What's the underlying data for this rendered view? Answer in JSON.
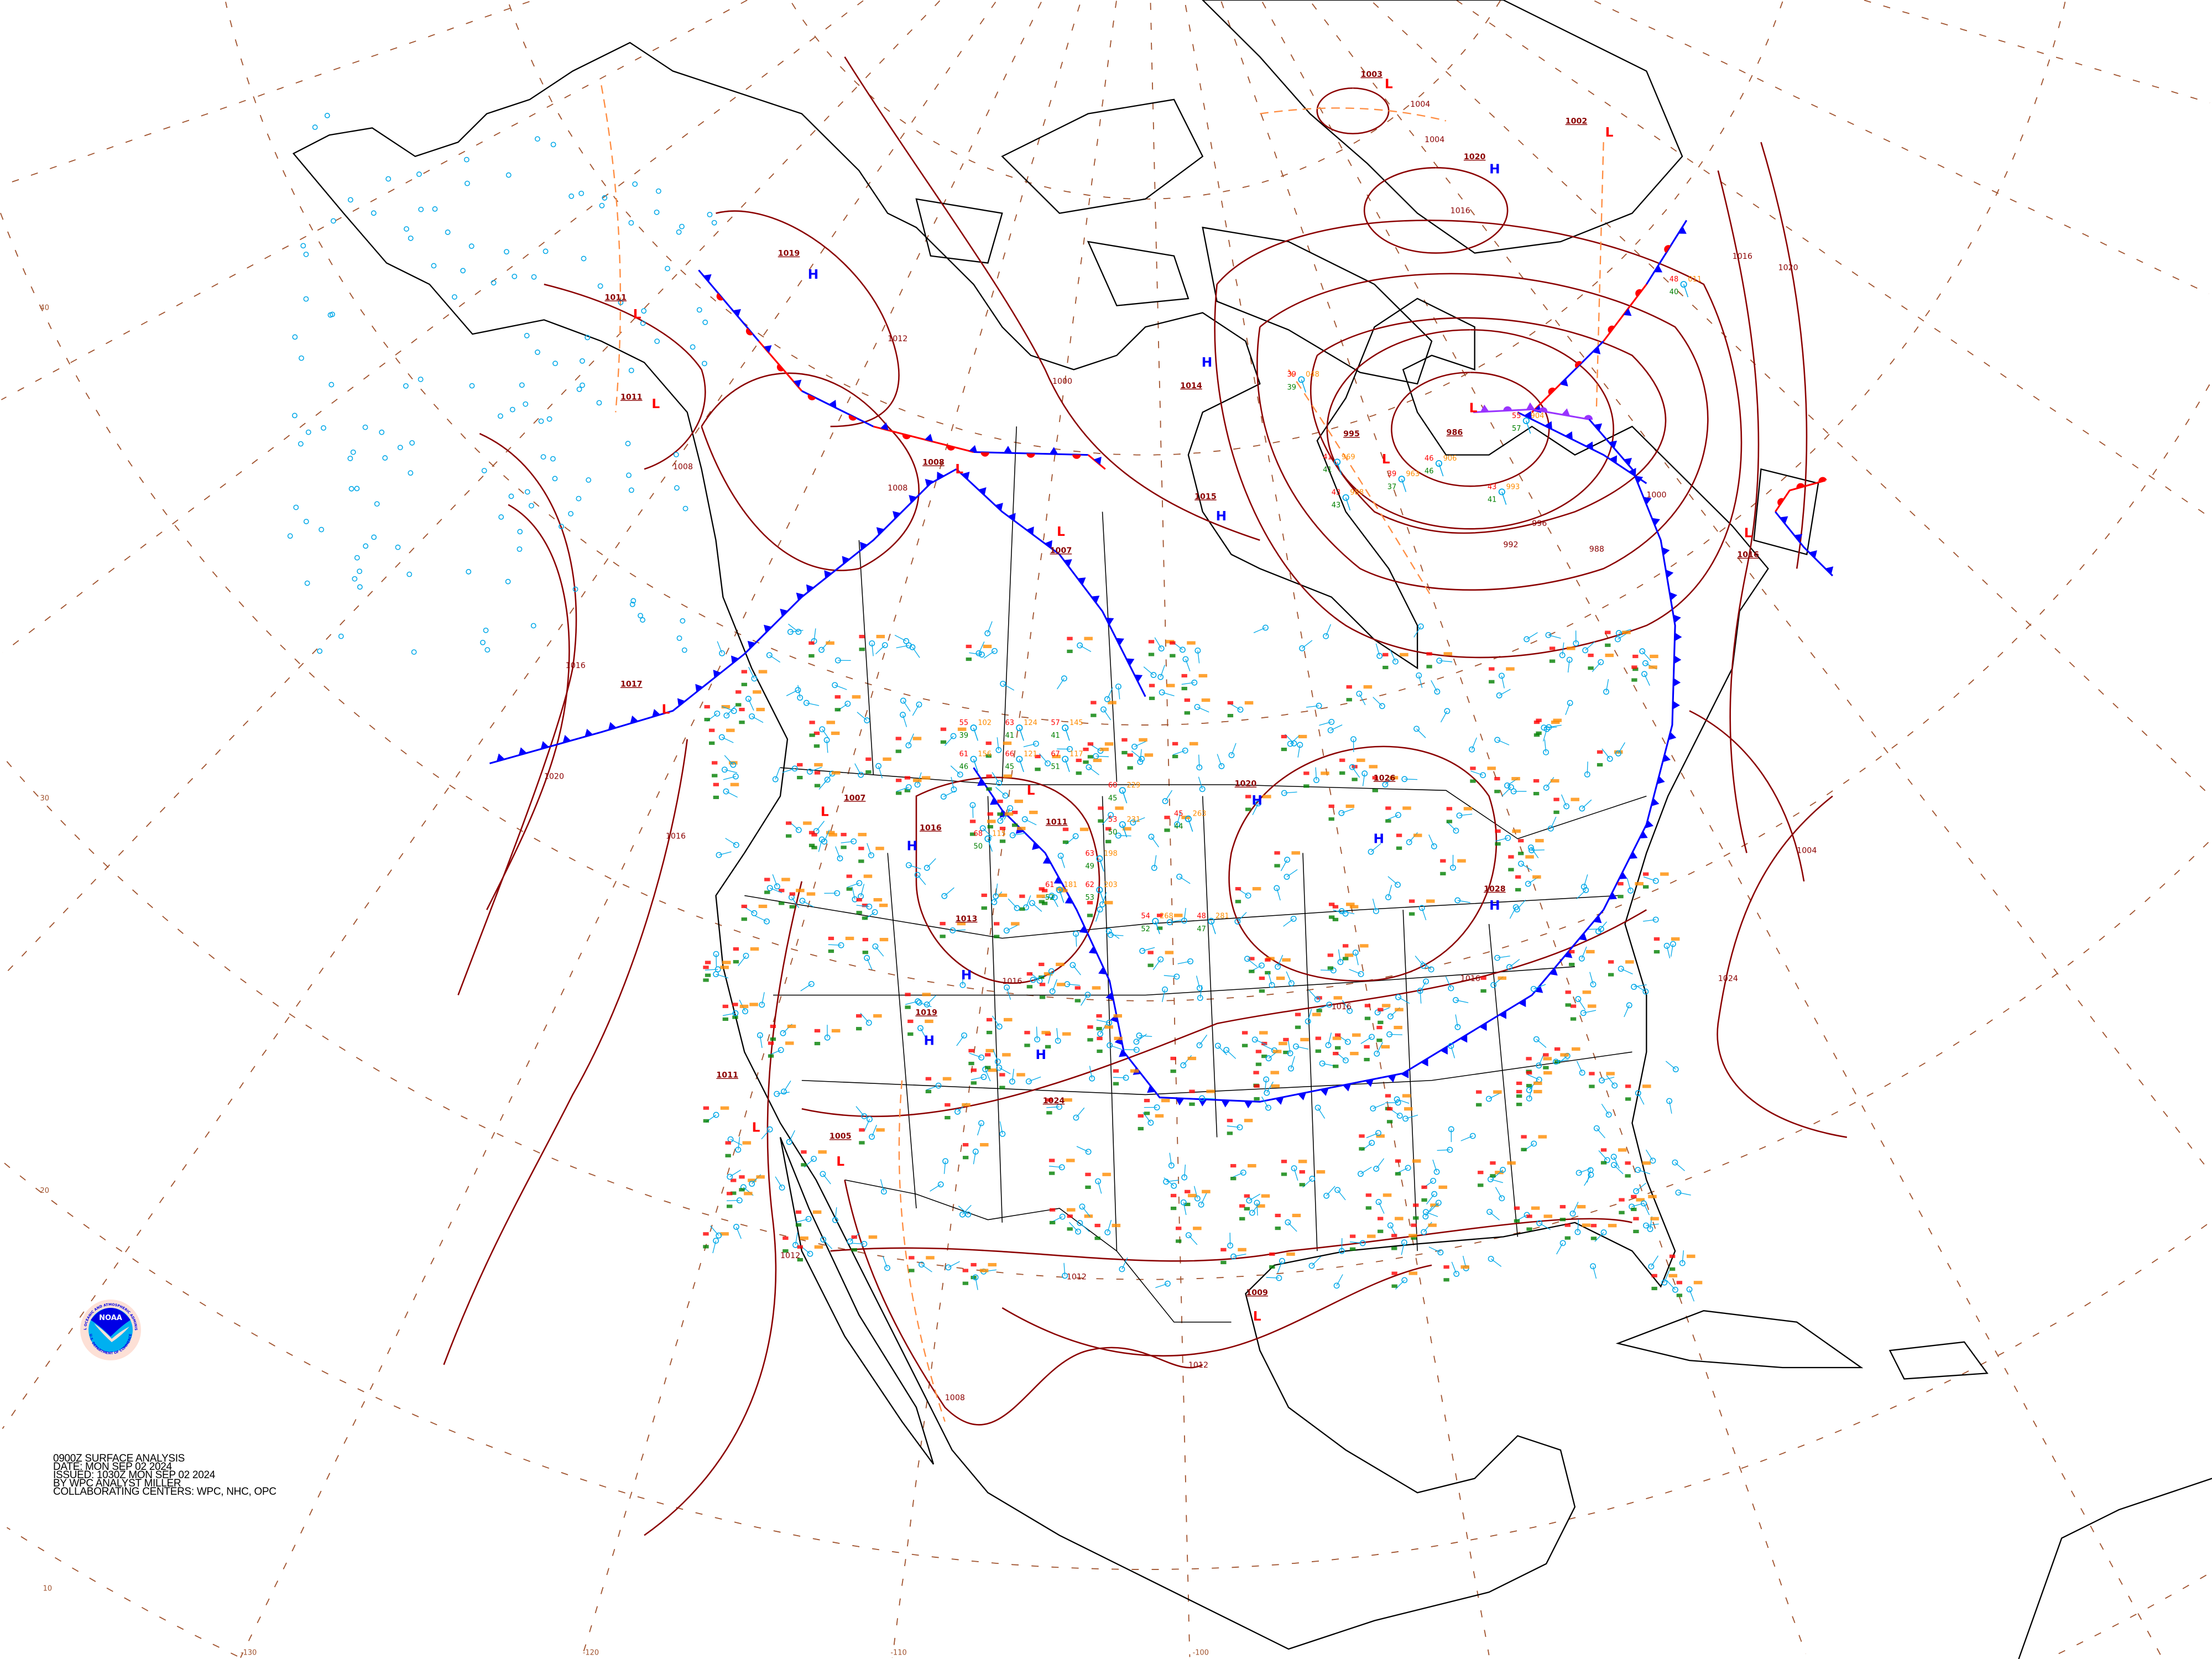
{
  "title_block": {
    "line1": "0900Z SURFACE ANALYSIS",
    "line2": "DATE: MON SEP 02 2024",
    "line3": "ISSUED: 1030Z MON SEP 02 2024",
    "line4": "BY WPC ANALYST MILLER",
    "line5": "COLLABORATING CENTERS: WPC, NHC, OPC"
  },
  "logo": {
    "wordmark": "NOAA",
    "ring_top": "NATIONAL OCEANIC AND ATMOSPHERIC ADMINISTRATION",
    "ring_bottom": "U.S. DEPARTMENT OF COMMERCE"
  },
  "grid_labels": {
    "latitude": [
      "40",
      "30",
      "20",
      "10"
    ],
    "longitude": [
      "-130",
      "-120",
      "-110",
      "-100"
    ]
  },
  "pressure_centers": [
    {
      "type": "L",
      "value": "1003"
    },
    {
      "type": "L",
      "value": "1002"
    },
    {
      "type": "H",
      "value": "1020"
    },
    {
      "type": "L",
      "value": "986"
    },
    {
      "type": "L",
      "value": "995"
    },
    {
      "type": "H",
      "value": "1014"
    },
    {
      "type": "H",
      "value": "1015"
    },
    {
      "type": "H",
      "value": "1019"
    },
    {
      "type": "L",
      "value": "1011"
    },
    {
      "type": "L",
      "value": "1011"
    },
    {
      "type": "L",
      "value": "1008"
    },
    {
      "type": "L",
      "value": "1007"
    },
    {
      "type": "L",
      "value": "1017"
    },
    {
      "type": "L",
      "value": "1007"
    },
    {
      "type": "H",
      "value": "1016"
    },
    {
      "type": "H",
      "value": "1013"
    },
    {
      "type": "L",
      "value": "1011"
    },
    {
      "type": "H",
      "value": "1019"
    },
    {
      "type": "H",
      "value": "1024"
    },
    {
      "type": "L",
      "value": "1005"
    },
    {
      "type": "L",
      "value": "1011"
    },
    {
      "type": "L",
      "value": "1009"
    },
    {
      "type": "H",
      "value": "1026"
    },
    {
      "type": "H",
      "value": "1028"
    },
    {
      "type": "H",
      "value": "1020"
    },
    {
      "type": "L",
      "value": "1016"
    }
  ],
  "isobar_labels": [
    "1016",
    "1020",
    "1016",
    "1012",
    "1008",
    "988",
    "992",
    "996",
    "1000",
    "1004",
    "1004",
    "1000",
    "1016",
    "1016",
    "1020",
    "1024",
    "1016",
    "1012",
    "1012",
    "1016",
    "1008",
    "1016",
    "1012",
    "1004",
    "1008"
  ],
  "stations": [
    {
      "temp": "39",
      "dewpoint": "39",
      "pressure": "048"
    },
    {
      "temp": "41",
      "dewpoint": "41",
      "pressure": "969"
    },
    {
      "temp": "39",
      "dewpoint": "37",
      "pressure": "963"
    },
    {
      "temp": "43",
      "dewpoint": "43",
      "pressure": "988"
    },
    {
      "temp": "46",
      "dewpoint": "46",
      "pressure": "906"
    },
    {
      "temp": "55",
      "dewpoint": "57",
      "pressure": "904"
    },
    {
      "temp": "43",
      "dewpoint": "41",
      "pressure": "993"
    },
    {
      "temp": "55",
      "dewpoint": "39",
      "pressure": "102"
    },
    {
      "temp": "63",
      "dewpoint": "41",
      "pressure": "124"
    },
    {
      "temp": "57",
      "dewpoint": "41",
      "pressure": "145"
    },
    {
      "temp": "61",
      "dewpoint": "46",
      "pressure": "156"
    },
    {
      "temp": "66",
      "dewpoint": "45",
      "pressure": "121"
    },
    {
      "temp": "67",
      "dewpoint": "51",
      "pressure": "117"
    },
    {
      "temp": "68",
      "dewpoint": "50",
      "pressure": "115"
    },
    {
      "temp": "60",
      "dewpoint": "45",
      "pressure": "229"
    },
    {
      "temp": "53",
      "dewpoint": "50",
      "pressure": "231"
    },
    {
      "temp": "63",
      "dewpoint": "49",
      "pressure": "198"
    },
    {
      "temp": "62",
      "dewpoint": "53",
      "pressure": "203"
    },
    {
      "temp": "61",
      "dewpoint": "52",
      "pressure": "181"
    },
    {
      "temp": "54",
      "dewpoint": "52",
      "pressure": "268"
    },
    {
      "temp": "45",
      "dewpoint": "44",
      "pressure": "263"
    },
    {
      "temp": "48",
      "dewpoint": "47",
      "pressure": "281"
    },
    {
      "temp": "48",
      "dewpoint": "40",
      "pressure": "011"
    }
  ],
  "fronts": [
    {
      "type": "stationary"
    },
    {
      "type": "cold"
    },
    {
      "type": "cold"
    },
    {
      "type": "stationary"
    },
    {
      "type": "occluded"
    },
    {
      "type": "cold"
    },
    {
      "type": "cold"
    },
    {
      "type": "warm"
    },
    {
      "type": "cold"
    }
  ],
  "colors": {
    "isobar": "#8b0000",
    "grid": "#a0522d",
    "high": "#0000ff",
    "low": "#ff0000",
    "temperature": "#ff0000",
    "dewpoint": "#008000",
    "pressure": "#ff8c00",
    "wind_barb": "#00a8e8",
    "cold_front": "#0000ff",
    "warm_front": "#ff0000",
    "occluded_front": "#9933ff",
    "trough": "#ff8c40",
    "coastline": "#000000"
  }
}
